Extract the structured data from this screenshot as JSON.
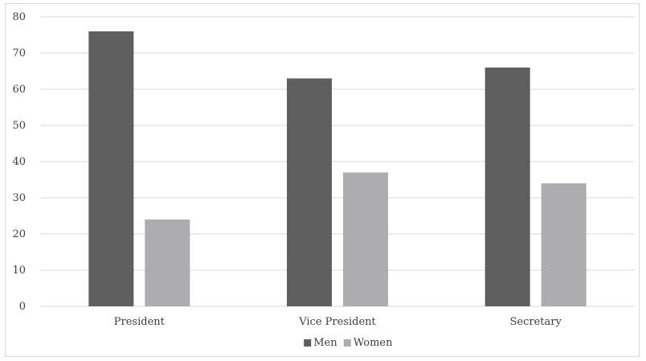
{
  "chart_data": {
    "type": "bar",
    "title": "",
    "xlabel": "",
    "ylabel": "",
    "categories": [
      "President",
      "Vice President",
      "Secretary"
    ],
    "series": [
      {
        "name": "Men",
        "values": [
          76,
          63,
          66
        ],
        "color": "#5f5f5f"
      },
      {
        "name": "Women",
        "values": [
          24,
          37,
          34
        ],
        "color": "#adadaf"
      }
    ],
    "ylim": [
      0,
      80
    ],
    "yticks": [
      0,
      10,
      20,
      30,
      40,
      50,
      60,
      70,
      80
    ],
    "grid": true,
    "legend_position": "bottom",
    "gridline_color": "#d9d9d9",
    "text_color": "#404040"
  }
}
